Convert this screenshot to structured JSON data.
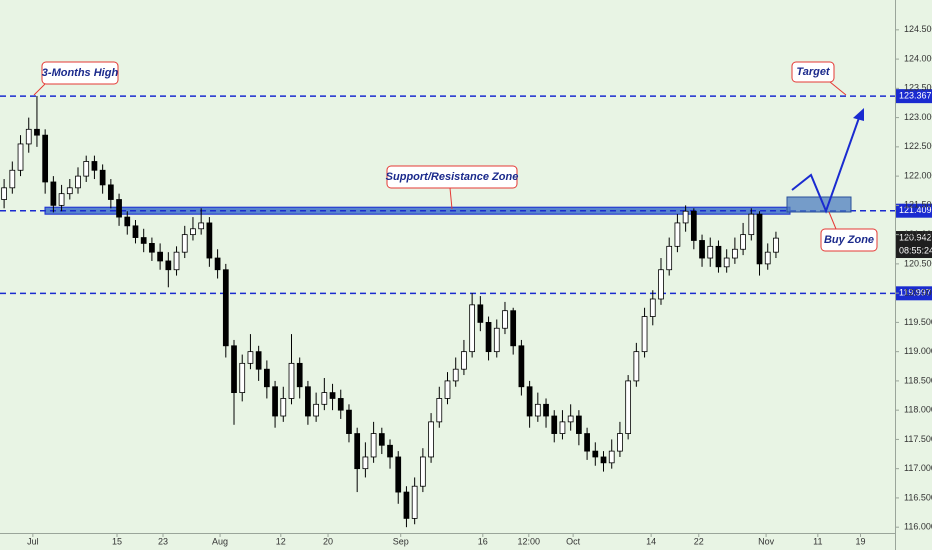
{
  "chart_data": {
    "type": "candlestick",
    "open": [
      121.6,
      121.8,
      122.1,
      122.55,
      122.8,
      122.7,
      121.9,
      121.5,
      121.7,
      121.8,
      122.0,
      122.25,
      122.1,
      121.85,
      121.6,
      121.3,
      121.15,
      120.95,
      120.85,
      120.7,
      120.55,
      120.4,
      120.7,
      121.0,
      121.1,
      121.2,
      120.6,
      120.4,
      119.1,
      118.3,
      118.8,
      119.0,
      118.7,
      118.4,
      117.9,
      118.2,
      118.8,
      118.4,
      117.9,
      118.1,
      118.3,
      118.2,
      118.0,
      117.6,
      117.0,
      117.2,
      117.6,
      117.4,
      117.2,
      116.6,
      116.15,
      116.7,
      117.2,
      117.8,
      118.2,
      118.5,
      118.7,
      119.0,
      119.8,
      119.5,
      119.0,
      119.4,
      119.7,
      119.1,
      118.4,
      117.9,
      118.1,
      117.9,
      117.6,
      117.8,
      117.9,
      117.6,
      117.3,
      117.2,
      117.1,
      117.3,
      117.6,
      118.5,
      119.0,
      119.6,
      119.9,
      120.4,
      120.8,
      121.2,
      121.4,
      120.9,
      120.6,
      120.8,
      120.45,
      120.6,
      120.75,
      121.0,
      121.35,
      120.5,
      120.7
    ],
    "high": [
      121.95,
      122.25,
      122.7,
      123.0,
      123.37,
      122.8,
      122.0,
      121.85,
      121.95,
      122.15,
      122.35,
      122.35,
      122.2,
      121.95,
      121.7,
      121.4,
      121.25,
      121.1,
      120.95,
      120.85,
      120.7,
      120.8,
      121.15,
      121.3,
      121.45,
      121.3,
      120.75,
      120.5,
      119.2,
      118.95,
      119.3,
      119.1,
      118.85,
      118.5,
      118.4,
      119.3,
      118.9,
      118.5,
      118.3,
      118.55,
      118.45,
      118.35,
      118.1,
      117.7,
      117.45,
      117.8,
      117.7,
      117.5,
      117.3,
      116.7,
      116.85,
      117.35,
      117.95,
      118.4,
      118.65,
      118.9,
      119.2,
      120.0,
      119.95,
      119.6,
      119.55,
      119.85,
      119.75,
      119.2,
      118.5,
      118.3,
      118.2,
      118.0,
      118.0,
      118.1,
      118.0,
      117.7,
      117.45,
      117.3,
      117.5,
      117.8,
      118.6,
      119.15,
      119.75,
      120.05,
      120.6,
      120.95,
      121.35,
      121.5,
      121.45,
      121.0,
      120.95,
      120.9,
      120.75,
      120.95,
      121.2,
      121.45,
      121.4,
      120.85,
      121.05
    ],
    "low": [
      121.45,
      121.7,
      122.0,
      122.4,
      122.5,
      121.7,
      121.38,
      121.4,
      121.6,
      121.7,
      121.9,
      121.95,
      121.7,
      121.45,
      121.15,
      121.0,
      120.85,
      120.7,
      120.55,
      120.4,
      120.1,
      120.3,
      120.6,
      120.9,
      121.0,
      120.45,
      120.25,
      118.9,
      117.75,
      118.15,
      118.7,
      118.5,
      118.2,
      117.7,
      117.8,
      118.1,
      118.2,
      117.75,
      117.8,
      118.0,
      118.0,
      117.85,
      117.45,
      116.6,
      116.85,
      117.1,
      117.25,
      117.0,
      116.4,
      116.0,
      116.05,
      116.6,
      117.1,
      117.7,
      118.1,
      118.4,
      118.6,
      118.9,
      119.35,
      118.85,
      118.9,
      119.3,
      118.95,
      118.25,
      117.7,
      117.8,
      117.7,
      117.45,
      117.5,
      117.65,
      117.4,
      117.15,
      117.05,
      116.95,
      117.0,
      117.2,
      117.5,
      118.4,
      118.9,
      119.45,
      119.8,
      120.3,
      120.7,
      121.05,
      120.75,
      120.45,
      120.45,
      120.35,
      120.35,
      120.5,
      120.65,
      120.9,
      120.3,
      120.4,
      120.6
    ],
    "close": [
      121.8,
      122.1,
      122.55,
      122.8,
      122.7,
      121.9,
      121.5,
      121.7,
      121.8,
      122.0,
      122.25,
      122.1,
      121.85,
      121.6,
      121.3,
      121.15,
      120.95,
      120.85,
      120.7,
      120.55,
      120.4,
      120.7,
      121.0,
      121.1,
      121.2,
      120.6,
      120.4,
      119.1,
      118.3,
      118.8,
      119.0,
      118.7,
      118.4,
      117.9,
      118.2,
      118.8,
      118.4,
      117.9,
      118.1,
      118.3,
      118.2,
      118.0,
      117.6,
      117.0,
      117.2,
      117.6,
      117.4,
      117.2,
      116.6,
      116.15,
      116.7,
      117.2,
      117.8,
      118.2,
      118.5,
      118.7,
      119.0,
      119.8,
      119.5,
      119.0,
      119.4,
      119.7,
      119.1,
      118.4,
      117.9,
      118.1,
      117.9,
      117.6,
      117.8,
      117.9,
      117.6,
      117.3,
      117.2,
      117.1,
      117.3,
      117.6,
      118.5,
      119.0,
      119.6,
      119.9,
      120.4,
      120.8,
      121.2,
      121.4,
      120.9,
      120.6,
      120.8,
      120.45,
      120.6,
      120.75,
      121.0,
      121.35,
      120.5,
      120.7,
      120.94
    ],
    "up_color": "#ffffff",
    "down_color": "#000000",
    "xlim": [
      -0.5,
      108.5
    ],
    "xticks": [
      {
        "value": 3.5,
        "label": "Jul"
      },
      {
        "value": 13.75,
        "label": "15"
      },
      {
        "value": 19.35,
        "label": "23"
      },
      {
        "value": 26.3,
        "label": "Aug"
      },
      {
        "value": 33.7,
        "label": "12"
      },
      {
        "value": 39.45,
        "label": "20"
      },
      {
        "value": 48.3,
        "label": "Sep"
      },
      {
        "value": 58.3,
        "label": "16"
      },
      {
        "value": 63.9,
        "label": "12:00"
      },
      {
        "value": 69.3,
        "label": "Oct"
      },
      {
        "value": 78.8,
        "label": "14"
      },
      {
        "value": 84.6,
        "label": "22"
      },
      {
        "value": 92.8,
        "label": "Nov"
      },
      {
        "value": 99.1,
        "label": "11"
      },
      {
        "value": 104.3,
        "label": "19"
      }
    ],
    "ylim": [
      115.61,
      125.01
    ],
    "yticks": [
      {
        "value": 116,
        "label": "116.000"
      },
      {
        "value": 116.5,
        "label": "116.500"
      },
      {
        "value": 117,
        "label": "117.000"
      },
      {
        "value": 117.5,
        "label": "117.500"
      },
      {
        "value": 118,
        "label": "118.000"
      },
      {
        "value": 118.5,
        "label": "118.500"
      },
      {
        "value": 119,
        "label": "119.000"
      },
      {
        "value": 119.5,
        "label": "119.500"
      },
      {
        "value": 120,
        "label": "120.000"
      },
      {
        "value": 120.5,
        "label": "120.500"
      },
      {
        "value": 121,
        "label": "121.000"
      },
      {
        "value": 121.5,
        "label": "121.500"
      },
      {
        "value": 122,
        "label": "122.000"
      },
      {
        "value": 122.5,
        "label": "122.500"
      },
      {
        "value": 123,
        "label": "123.000"
      },
      {
        "value": 123.5,
        "label": "123.500"
      },
      {
        "value": 124,
        "label": "124.000"
      },
      {
        "value": 124.5,
        "label": "124.500"
      }
    ],
    "levels": [
      {
        "value": 123.367,
        "label": "123.367"
      },
      {
        "value": 121.409,
        "label": "121.409"
      },
      {
        "value": 119.997,
        "label": "119.997"
      }
    ],
    "level_color": "#1a2bd0",
    "last_price": {
      "value": 120.942,
      "label": "120.942"
    },
    "countdown": "08:55:24",
    "annotations": [
      "3-Months High",
      "Support/Resistance Zone",
      "Target",
      "Buy Zone"
    ]
  }
}
